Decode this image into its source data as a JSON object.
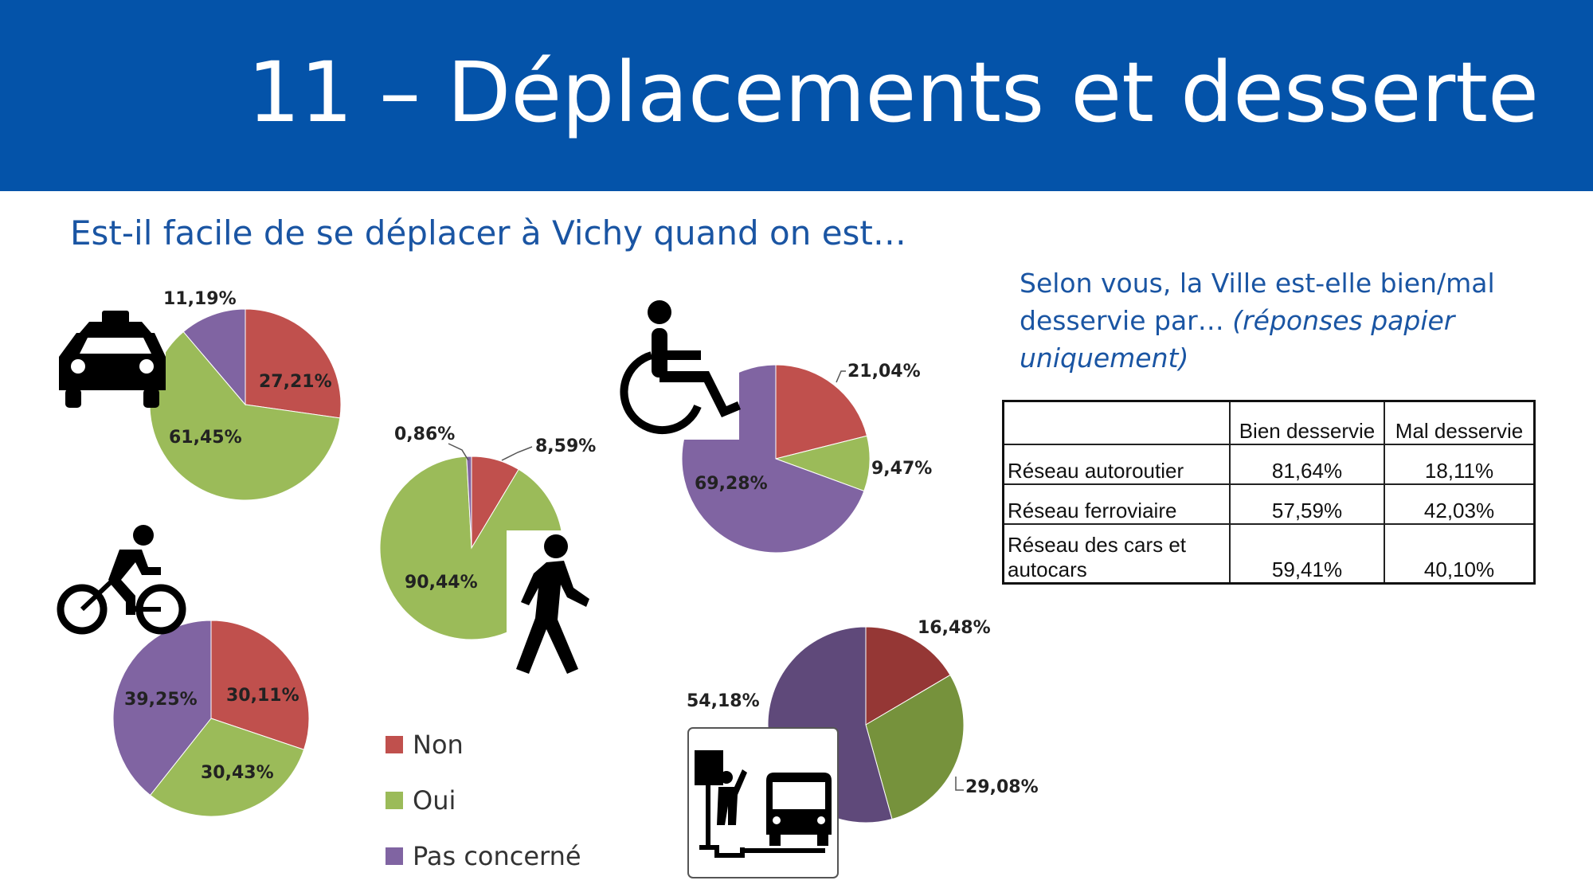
{
  "title": "11 – Déplacements et desserte",
  "subtitle": "Est-il facile de se déplacer à Vichy quand on est…",
  "question": {
    "main": "Selon vous, la Ville est-elle bien/mal desservie par… ",
    "italic": "(réponses papier uniquement)"
  },
  "colors": {
    "non": "#c0504d",
    "oui": "#9bbb59",
    "pas_concerne": "#8064a2",
    "header": "#0453a9"
  },
  "legend": [
    {
      "label": "Non",
      "color": "#c0504d"
    },
    {
      "label": "Oui",
      "color": "#9bbb59"
    },
    {
      "label": "Pas concerné",
      "color": "#8064a2"
    }
  ],
  "icons": [
    "taxi-icon",
    "bicycle-icon",
    "pedestrian-icon",
    "wheelchair-icon",
    "bus-stop-icon"
  ],
  "chart_data": [
    {
      "type": "pie",
      "icon": "taxi-icon",
      "categories": [
        "Non",
        "Oui",
        "Pas concerné"
      ],
      "values": [
        27.21,
        61.45,
        11.19
      ],
      "labels": [
        "27,21%",
        "61,45%",
        "11,19%"
      ]
    },
    {
      "type": "pie",
      "icon": "bicycle-icon",
      "categories": [
        "Non",
        "Oui",
        "Pas concerné"
      ],
      "values": [
        30.11,
        30.43,
        39.25
      ],
      "labels": [
        "30,11%",
        "30,43%",
        "39,25%"
      ]
    },
    {
      "type": "pie",
      "icon": "pedestrian-icon",
      "categories": [
        "Non",
        "Oui",
        "Pas concerné"
      ],
      "values": [
        8.59,
        90.44,
        0.86
      ],
      "labels": [
        "8,59%",
        "90,44%",
        "0,86%"
      ]
    },
    {
      "type": "pie",
      "icon": "wheelchair-icon",
      "categories": [
        "Non",
        "Oui",
        "Pas concerné"
      ],
      "values": [
        21.04,
        9.47,
        69.28
      ],
      "labels": [
        "21,04%",
        "9,47%",
        "69,28%"
      ]
    },
    {
      "type": "pie",
      "icon": "bus-stop-icon",
      "categories": [
        "Non",
        "Oui",
        "Pas concerné"
      ],
      "values": [
        16.48,
        29.08,
        54.18
      ],
      "labels": [
        "16,48%",
        "29,08%",
        "54,18%"
      ]
    },
    {
      "type": "table",
      "columns": [
        "",
        "Bien desservie",
        "Mal desservie"
      ],
      "rows": [
        {
          "label": "Réseau autoroutier",
          "bien": "81,64%",
          "mal": "18,11%"
        },
        {
          "label": "Réseau ferroviaire",
          "bien": "57,59%",
          "mal": "42,03%"
        },
        {
          "label": "Réseau des cars et autocars",
          "bien": "59,41%",
          "mal": "40,10%"
        }
      ]
    }
  ]
}
